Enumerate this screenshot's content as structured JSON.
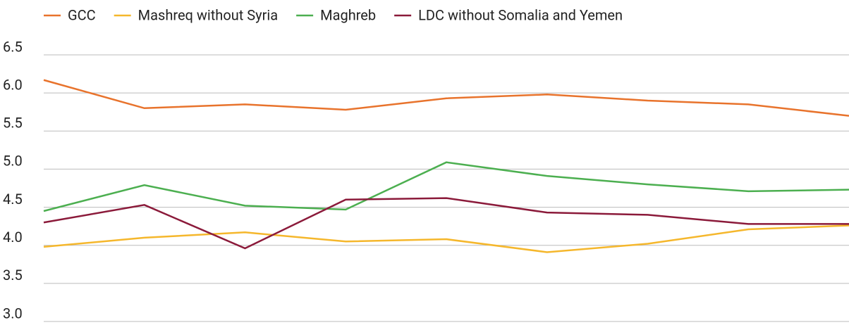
{
  "chart_data": {
    "type": "line",
    "categories": [
      null,
      null,
      null,
      null,
      null,
      null,
      null,
      null,
      null
    ],
    "series": [
      {
        "name": "GCC",
        "color": "#e8732c",
        "values": [
          6.17,
          5.8,
          5.85,
          5.78,
          5.93,
          5.98,
          5.9,
          5.85,
          5.7
        ]
      },
      {
        "name": "Mashreq without Syria",
        "color": "#f5b72c",
        "values": [
          3.98,
          4.1,
          4.17,
          4.05,
          4.08,
          3.91,
          4.02,
          4.21,
          4.26
        ]
      },
      {
        "name": "Maghreb",
        "color": "#4caf50",
        "values": [
          4.45,
          4.79,
          4.52,
          4.47,
          5.09,
          4.91,
          4.8,
          4.71,
          4.73
        ]
      },
      {
        "name": "LDC without Somalia and Yemen",
        "color": "#8b1a3a",
        "values": [
          4.3,
          4.53,
          3.96,
          4.6,
          4.62,
          4.43,
          4.4,
          4.28,
          4.28
        ]
      }
    ],
    "ylim": [
      3.0,
      6.5
    ],
    "yticks": [
      {
        "value": 3,
        "label": "3.0"
      },
      3.5,
      {
        "value": 4,
        "label": "4.0"
      },
      4.5,
      {
        "value": 5,
        "label": "5.0"
      },
      5.5,
      {
        "value": 6,
        "label": "6.0"
      },
      6.5
    ],
    "grid": true,
    "legend": "top"
  }
}
